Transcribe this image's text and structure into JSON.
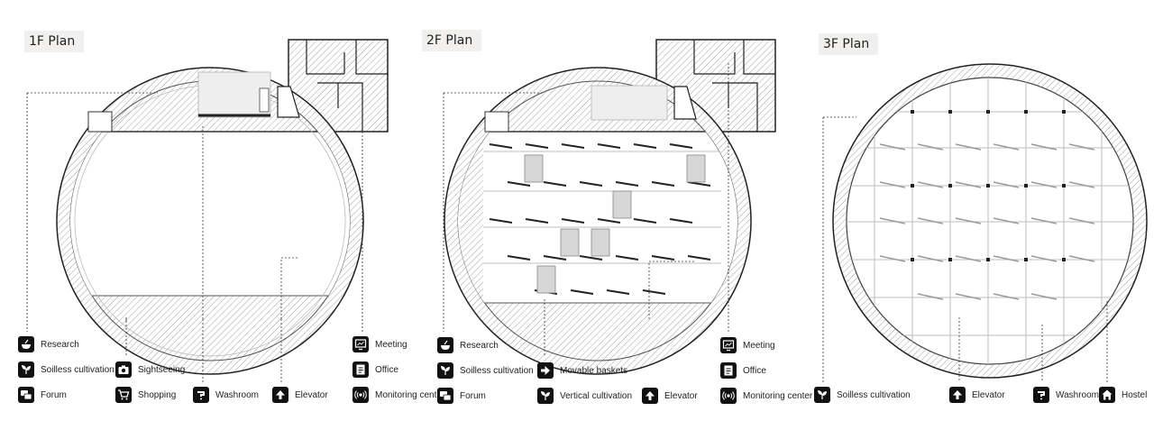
{
  "plans": [
    {
      "title": "1F Plan",
      "legend": [
        {
          "icon": "bowl-icon",
          "label": "Research"
        },
        {
          "icon": "leaf-icon",
          "label": "Soilless cultivation"
        },
        {
          "icon": "chat-icon",
          "label": "Forum"
        },
        {
          "icon": "camera-icon",
          "label": "Sightseeing"
        },
        {
          "icon": "cart-icon",
          "label": "Shopping"
        },
        {
          "icon": "faucet-icon",
          "label": "Washroom"
        },
        {
          "icon": "arrow-up-icon",
          "label": "Elevator"
        },
        {
          "icon": "monitor-icon",
          "label": "Meeting"
        },
        {
          "icon": "document-icon",
          "label": "Office"
        },
        {
          "icon": "broadcast-icon",
          "label": "Monitoring center"
        }
      ]
    },
    {
      "title": "2F Plan",
      "legend": [
        {
          "icon": "bowl-icon",
          "label": "Research"
        },
        {
          "icon": "leaf-icon",
          "label": "Soilless cultivation"
        },
        {
          "icon": "chat-icon",
          "label": "Forum"
        },
        {
          "icon": "arrow-right-icon",
          "label": "Movable baskets"
        },
        {
          "icon": "leaf-icon",
          "label": "Vertical cultivation"
        },
        {
          "icon": "arrow-up-icon",
          "label": "Elevator"
        },
        {
          "icon": "monitor-icon",
          "label": "Meeting"
        },
        {
          "icon": "document-icon",
          "label": "Office"
        },
        {
          "icon": "broadcast-icon",
          "label": "Monitoring center"
        }
      ]
    },
    {
      "title": "3F Plan",
      "legend": [
        {
          "icon": "leaf-icon",
          "label": "Soilless cultivation"
        },
        {
          "icon": "arrow-up-icon",
          "label": "Elevator"
        },
        {
          "icon": "faucet-icon",
          "label": "Washroom"
        },
        {
          "icon": "house-icon",
          "label": "Hostel"
        }
      ]
    }
  ]
}
